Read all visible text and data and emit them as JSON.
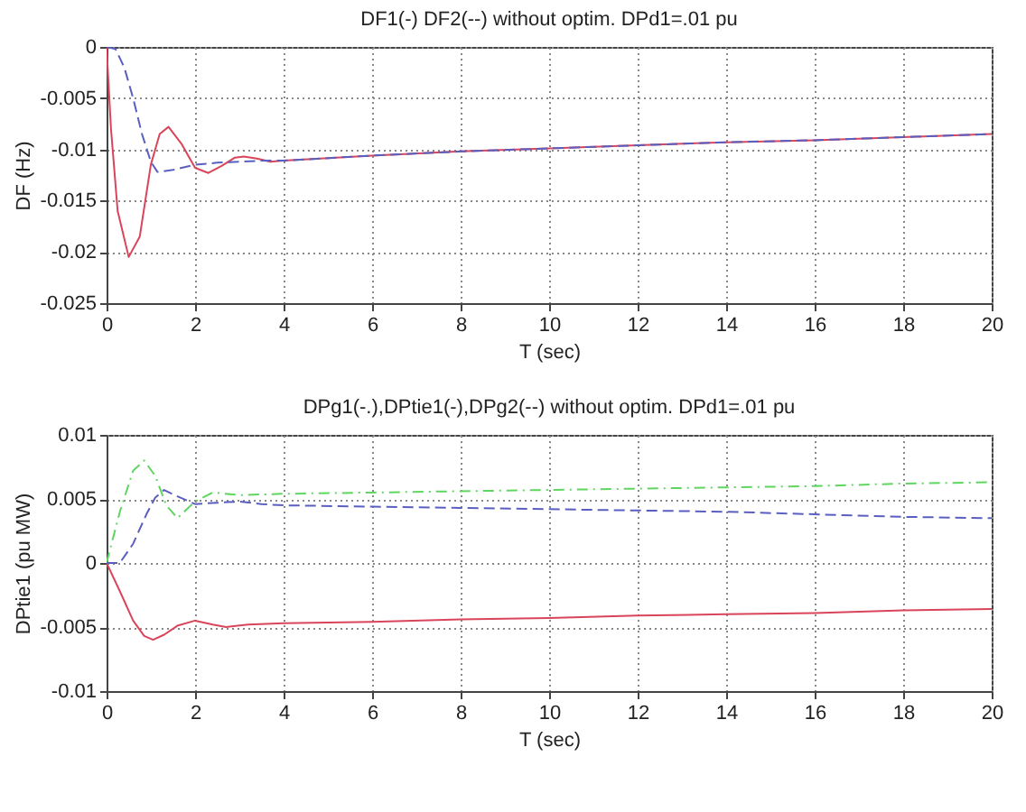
{
  "chart_data": [
    {
      "type": "line",
      "title": "DF1(-) DF2(--) without optim. DPd1=.01 pu",
      "xlabel": "T  (sec)",
      "ylabel": "DF (Hz)",
      "xlim": [
        0,
        20
      ],
      "ylim": [
        -0.025,
        0
      ],
      "xticks": [
        0,
        2,
        4,
        6,
        8,
        10,
        12,
        14,
        16,
        18,
        20
      ],
      "yticks": [
        -0.025,
        -0.02,
        -0.015,
        -0.01,
        -0.005,
        0
      ],
      "grid": true,
      "series": [
        {
          "color": "#d9455a",
          "line_style": "solid",
          "x": [
            0,
            0.1,
            0.25,
            0.5,
            0.75,
            1,
            1.2,
            1.4,
            1.7,
            2,
            2.3,
            2.6,
            2.9,
            3.1,
            3.4,
            3.7,
            4,
            6,
            8,
            10,
            12,
            14,
            16,
            18,
            20
          ],
          "values": [
            0,
            -0.008,
            -0.016,
            -0.0205,
            -0.0185,
            -0.0115,
            -0.0085,
            -0.0078,
            -0.0095,
            -0.0118,
            -0.0123,
            -0.0116,
            -0.0108,
            -0.0107,
            -0.0109,
            -0.0112,
            -0.0111,
            -0.0106,
            -0.0102,
            -0.0099,
            -0.0096,
            -0.0093,
            -0.0091,
            -0.0088,
            -0.0085
          ]
        },
        {
          "color": "#5a5fbf",
          "line_style": "dashed",
          "x": [
            0,
            0.2,
            0.4,
            0.6,
            0.8,
            1,
            1.15,
            1.5,
            2,
            2.5,
            3,
            3.5,
            4,
            6,
            8,
            10,
            12,
            14,
            16,
            18,
            20
          ],
          "values": [
            0,
            -0.0002,
            -0.002,
            -0.005,
            -0.0085,
            -0.0112,
            -0.0122,
            -0.012,
            -0.0115,
            -0.0113,
            -0.0112,
            -0.0111,
            -0.0111,
            -0.0106,
            -0.0102,
            -0.0099,
            -0.0096,
            -0.0093,
            -0.0091,
            -0.0088,
            -0.0085
          ]
        }
      ]
    },
    {
      "type": "line",
      "title": "DPg1(-.),DPtie1(-),DPg2(--) without optim. DPd1=.01 pu",
      "xlabel": "T  (sec)",
      "ylabel": "DPtie1 (pu MW)",
      "xlim": [
        0,
        20
      ],
      "ylim": [
        -0.01,
        0.01
      ],
      "xticks": [
        0,
        2,
        4,
        6,
        8,
        10,
        12,
        14,
        16,
        18,
        20
      ],
      "yticks": [
        -0.01,
        -0.005,
        0,
        0.005,
        0.01
      ],
      "grid": true,
      "series": [
        {
          "color": "#5fd65f",
          "line_style": "dashdot",
          "x": [
            0,
            0.3,
            0.6,
            0.85,
            1.1,
            1.35,
            1.6,
            2,
            2.4,
            3,
            4,
            6,
            8,
            10,
            12,
            14,
            16,
            18,
            20
          ],
          "values": [
            0,
            0.004,
            0.0072,
            0.008,
            0.0068,
            0.0045,
            0.0035,
            0.0048,
            0.0055,
            0.0053,
            0.0054,
            0.0055,
            0.0056,
            0.0057,
            0.0058,
            0.0059,
            0.006,
            0.0062,
            0.0063
          ]
        },
        {
          "color": "#d9455a",
          "line_style": "solid",
          "x": [
            0,
            0.3,
            0.6,
            0.85,
            1.05,
            1.3,
            1.6,
            2,
            2.4,
            2.7,
            3.2,
            4,
            6,
            8,
            10,
            12,
            14,
            16,
            18,
            20
          ],
          "values": [
            0,
            -0.0022,
            -0.0045,
            -0.0057,
            -0.006,
            -0.0056,
            -0.0049,
            -0.0045,
            -0.0048,
            -0.005,
            -0.0048,
            -0.0047,
            -0.0046,
            -0.0044,
            -0.0043,
            -0.0041,
            -0.004,
            -0.0039,
            -0.0037,
            -0.0036
          ]
        },
        {
          "color": "#5a5fbf",
          "line_style": "dashed",
          "x": [
            0,
            0.3,
            0.6,
            0.9,
            1.1,
            1.3,
            1.6,
            2,
            2.5,
            3,
            3.5,
            4,
            6,
            8,
            10,
            12,
            14,
            16,
            18,
            20
          ],
          "values": [
            0,
            0,
            0.0015,
            0.0038,
            0.0051,
            0.0057,
            0.0052,
            0.0046,
            0.0047,
            0.0048,
            0.0046,
            0.0045,
            0.0044,
            0.0043,
            0.0042,
            0.0041,
            0.004,
            0.0038,
            0.0036,
            0.0035
          ]
        }
      ]
    }
  ]
}
